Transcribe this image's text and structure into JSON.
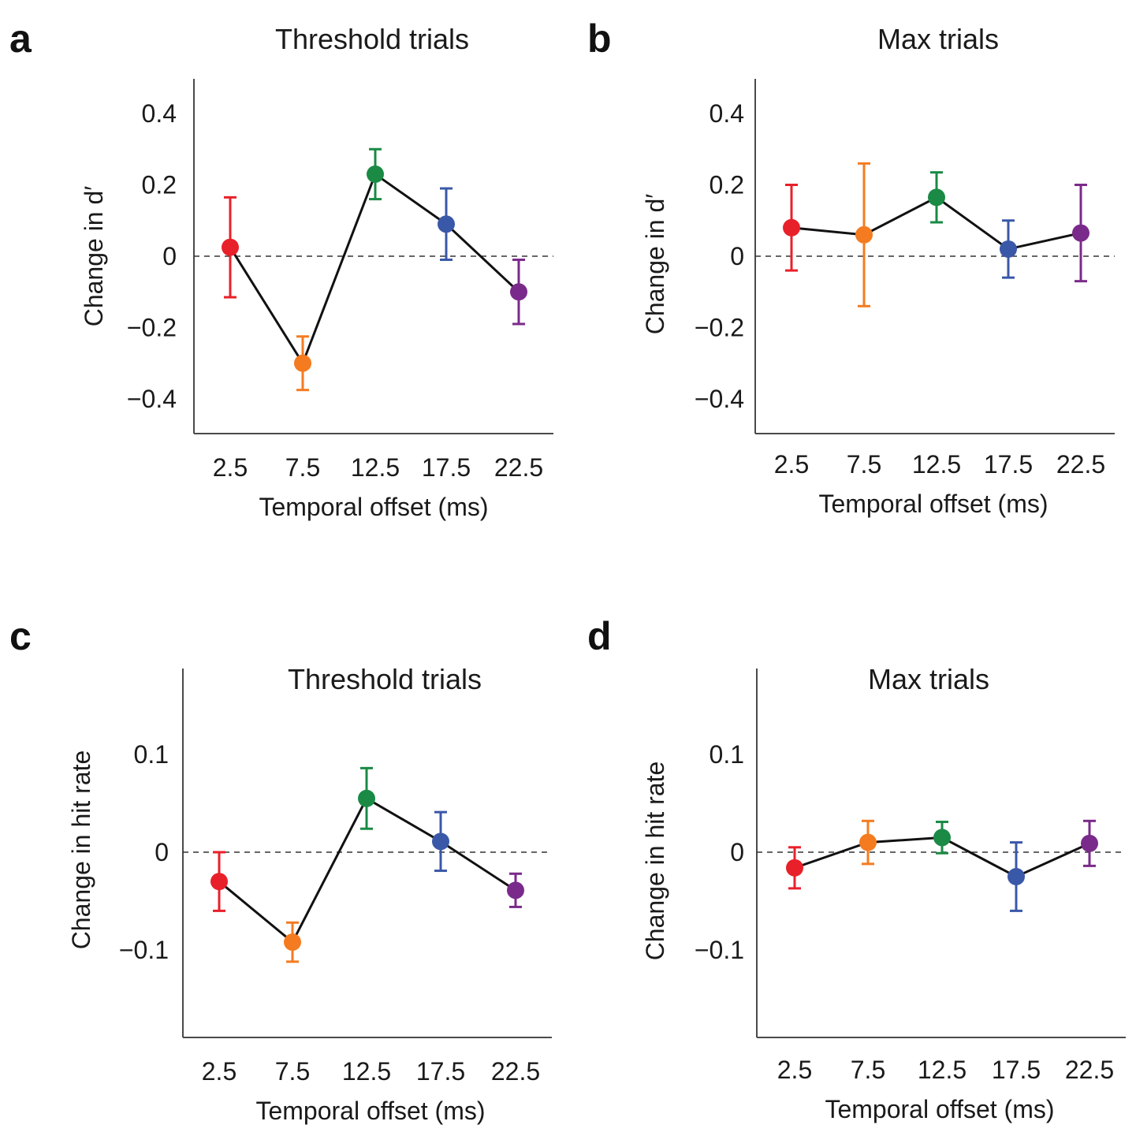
{
  "chart_data": [
    {
      "panel": "a",
      "type": "line",
      "title": "Threshold trials",
      "xlabel": "Temporal offset (ms)",
      "ylabel": "Change in d′",
      "categories": [
        "2.5",
        "7.5",
        "12.5",
        "17.5",
        "22.5"
      ],
      "ylim": [
        -0.5,
        0.5
      ],
      "yticks": [
        0.4,
        0.2,
        0,
        -0.2,
        -0.4
      ],
      "ytick_labels": [
        "0.4",
        "0.2",
        "0",
        "−0.2",
        "−0.4"
      ],
      "values": [
        0.025,
        -0.3,
        0.23,
        0.09,
        -0.1
      ],
      "errors": [
        0.14,
        0.075,
        0.07,
        0.1,
        0.09
      ],
      "point_colors": [
        "#e8202a",
        "#f47b20",
        "#1a8a45",
        "#3a58a8",
        "#7a2a8a"
      ],
      "zero_line": "dashed"
    },
    {
      "panel": "b",
      "type": "line",
      "title": "Max trials",
      "xlabel": "Temporal offset (ms)",
      "ylabel": "Change in d′",
      "categories": [
        "2.5",
        "7.5",
        "12.5",
        "17.5",
        "22.5"
      ],
      "ylim": [
        -0.5,
        0.5
      ],
      "yticks": [
        0.4,
        0.2,
        0,
        -0.2,
        -0.4
      ],
      "ytick_labels": [
        "0.4",
        "0.2",
        "0",
        "−0.2",
        "−0.4"
      ],
      "values": [
        0.08,
        0.06,
        0.165,
        0.02,
        0.065
      ],
      "errors": [
        0.12,
        0.2,
        0.07,
        0.08,
        0.135
      ],
      "point_colors": [
        "#e8202a",
        "#f47b20",
        "#1a8a45",
        "#3a58a8",
        "#7a2a8a"
      ],
      "zero_line": "dashed"
    },
    {
      "panel": "c",
      "type": "line",
      "title": "Threshold trials",
      "xlabel": "Temporal offset (ms)",
      "ylabel": "Change in hit rate",
      "categories": [
        "2.5",
        "7.5",
        "12.5",
        "17.5",
        "22.5"
      ],
      "ylim": [
        -0.19,
        0.19
      ],
      "yticks": [
        0.1,
        0,
        -0.1
      ],
      "ytick_labels": [
        "0.1",
        "0",
        "−0.1"
      ],
      "values": [
        -0.03,
        -0.092,
        0.055,
        0.011,
        -0.039
      ],
      "errors": [
        0.03,
        0.02,
        0.031,
        0.03,
        0.017
      ],
      "point_colors": [
        "#e8202a",
        "#f47b20",
        "#1a8a45",
        "#3a58a8",
        "#7a2a8a"
      ],
      "zero_line": "dashed"
    },
    {
      "panel": "d",
      "type": "line",
      "title": "Max trials",
      "xlabel": "Temporal offset (ms)",
      "ylabel": "Change in hit rate",
      "categories": [
        "2.5",
        "7.5",
        "12.5",
        "17.5",
        "22.5"
      ],
      "ylim": [
        -0.19,
        0.19
      ],
      "yticks": [
        0.1,
        0,
        -0.1
      ],
      "ytick_labels": [
        "0.1",
        "0",
        "−0.1"
      ],
      "values": [
        -0.016,
        0.01,
        0.015,
        -0.025,
        0.009
      ],
      "errors": [
        0.021,
        0.022,
        0.016,
        0.035,
        0.023
      ],
      "point_colors": [
        "#e8202a",
        "#f47b20",
        "#1a8a45",
        "#3a58a8",
        "#7a2a8a"
      ],
      "zero_line": "dashed"
    }
  ]
}
